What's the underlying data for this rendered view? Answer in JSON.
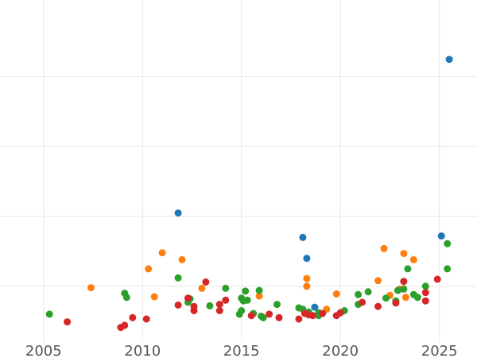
{
  "chart_data": {
    "type": "scatter",
    "title": "",
    "xlabel": "",
    "ylabel": "",
    "xlim": [
      2002.8,
      2026.9
    ],
    "ylim": [
      0.2,
      5.1
    ],
    "grid": true,
    "x_tick_values": [
      2005,
      2010,
      2015,
      2020,
      2025
    ],
    "x_tick_labels": [
      "2005",
      "2010",
      "2015",
      "2020",
      "2025"
    ],
    "y_grid_values": [
      1,
      2,
      3,
      4
    ],
    "series": [
      {
        "color": "#1f77b4",
        "points": [
          [
            2011.8,
            2.05
          ],
          [
            2018.1,
            1.7
          ],
          [
            2018.3,
            1.4
          ],
          [
            2018.7,
            0.7
          ],
          [
            2025.1,
            1.72
          ],
          [
            2025.5,
            4.25
          ]
        ]
      },
      {
        "color": "#ff7f0e",
        "points": [
          [
            2007.4,
            0.98
          ],
          [
            2010.3,
            1.25
          ],
          [
            2010.6,
            0.85
          ],
          [
            2011.0,
            1.48
          ],
          [
            2012.0,
            1.38
          ],
          [
            2013.0,
            0.97
          ],
          [
            2015.9,
            0.86
          ],
          [
            2018.3,
            1.11
          ],
          [
            2018.3,
            1.0
          ],
          [
            2019.3,
            0.67
          ],
          [
            2019.8,
            0.89
          ],
          [
            2021.9,
            1.08
          ],
          [
            2022.2,
            1.54
          ],
          [
            2022.5,
            0.87
          ],
          [
            2023.0,
            0.96
          ],
          [
            2023.2,
            1.47
          ],
          [
            2023.3,
            0.84
          ],
          [
            2023.7,
            1.38
          ]
        ]
      },
      {
        "color": "#2ca02c",
        "points": [
          [
            2005.3,
            0.6
          ],
          [
            2009.1,
            0.9
          ],
          [
            2009.2,
            0.84
          ],
          [
            2011.8,
            1.12
          ],
          [
            2012.4,
            0.82
          ],
          [
            2012.3,
            0.77
          ],
          [
            2013.4,
            0.72
          ],
          [
            2014.2,
            0.97
          ],
          [
            2014.9,
            0.6
          ],
          [
            2015.0,
            0.65
          ],
          [
            2015.0,
            0.83
          ],
          [
            2015.1,
            0.79
          ],
          [
            2015.2,
            0.93
          ],
          [
            2015.3,
            0.8
          ],
          [
            2015.6,
            0.61
          ],
          [
            2015.9,
            0.94
          ],
          [
            2016.0,
            0.57
          ],
          [
            2016.1,
            0.55
          ],
          [
            2016.8,
            0.74
          ],
          [
            2017.9,
            0.69
          ],
          [
            2018.1,
            0.67
          ],
          [
            2018.4,
            0.63
          ],
          [
            2018.9,
            0.62
          ],
          [
            2018.9,
            0.58
          ],
          [
            2020.2,
            0.65
          ],
          [
            2020.9,
            0.88
          ],
          [
            2020.9,
            0.74
          ],
          [
            2021.4,
            0.92
          ],
          [
            2022.3,
            0.83
          ],
          [
            2022.8,
            0.79
          ],
          [
            2022.8,
            0.77
          ],
          [
            2022.9,
            0.94
          ],
          [
            2023.2,
            0.96
          ],
          [
            2023.4,
            1.25
          ],
          [
            2023.7,
            0.88
          ],
          [
            2023.9,
            0.84
          ],
          [
            2024.3,
            1.0
          ],
          [
            2025.4,
            1.61
          ],
          [
            2025.4,
            1.25
          ]
        ]
      },
      {
        "color": "#d62728",
        "points": [
          [
            2006.2,
            0.49
          ],
          [
            2008.9,
            0.41
          ],
          [
            2009.1,
            0.44
          ],
          [
            2009.5,
            0.55
          ],
          [
            2010.2,
            0.53
          ],
          [
            2011.8,
            0.73
          ],
          [
            2012.3,
            0.83
          ],
          [
            2012.6,
            0.71
          ],
          [
            2012.6,
            0.65
          ],
          [
            2013.2,
            1.06
          ],
          [
            2013.9,
            0.65
          ],
          [
            2013.9,
            0.74
          ],
          [
            2014.2,
            0.8
          ],
          [
            2015.5,
            0.58
          ],
          [
            2016.4,
            0.6
          ],
          [
            2016.9,
            0.55
          ],
          [
            2017.9,
            0.53
          ],
          [
            2018.2,
            0.61
          ],
          [
            2018.4,
            0.59
          ],
          [
            2018.6,
            0.58
          ],
          [
            2019.1,
            0.61
          ],
          [
            2019.8,
            0.58
          ],
          [
            2020.0,
            0.62
          ],
          [
            2021.1,
            0.77
          ],
          [
            2021.9,
            0.71
          ],
          [
            2022.8,
            0.76
          ],
          [
            2023.2,
            1.07
          ],
          [
            2024.3,
            0.79
          ],
          [
            2024.3,
            0.91
          ],
          [
            2024.9,
            1.1
          ]
        ]
      }
    ]
  }
}
